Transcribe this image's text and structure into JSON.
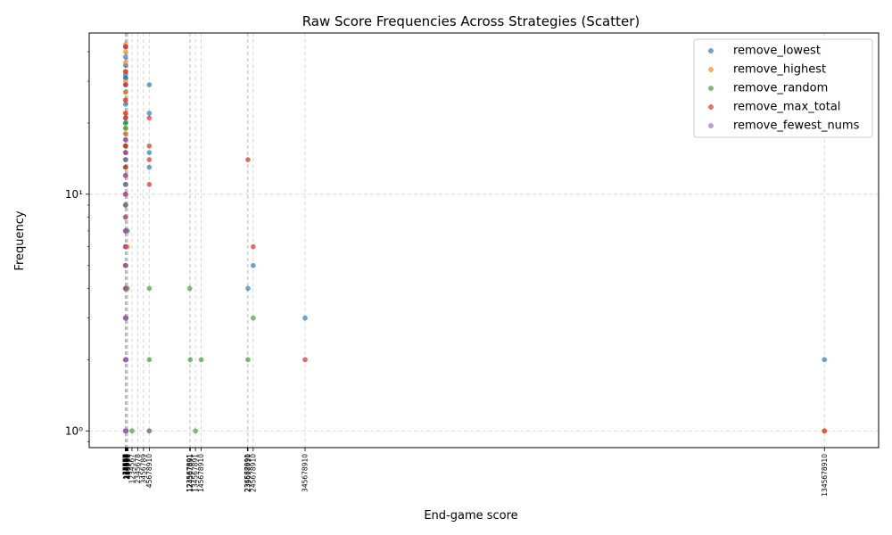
{
  "chart_data": {
    "type": "scatter",
    "title": "Raw Score Frequencies Across Strategies (Scatter)",
    "xlabel": "End-game score",
    "ylabel": "Frequency",
    "yscale": "log",
    "ylim": [
      0.85,
      48
    ],
    "ytick_values": [
      1,
      10
    ],
    "ytick_labels": [
      "10⁰",
      "10¹"
    ],
    "grid": true,
    "legend_position": "top-right",
    "xticks": [
      {
        "value": 0,
        "label": "1"
      },
      {
        "value": 12,
        "label": "2"
      },
      {
        "value": 23,
        "label": "3"
      },
      {
        "value": 34,
        "label": "4"
      },
      {
        "value": 45,
        "label": "5"
      },
      {
        "value": 56,
        "label": "6"
      },
      {
        "value": 67,
        "label": "7"
      },
      {
        "value": 78,
        "label": "8"
      },
      {
        "value": 89,
        "label": "9"
      },
      {
        "value": 100,
        "label": "10"
      },
      {
        "value": 123,
        "label": "12"
      },
      {
        "value": 234,
        "label": "23"
      },
      {
        "value": 345,
        "label": "34"
      },
      {
        "value": 456,
        "label": "45"
      },
      {
        "value": 567,
        "label": "56"
      },
      {
        "value": 678,
        "label": "67"
      },
      {
        "value": 789,
        "label": "78"
      },
      {
        "value": 1234,
        "label": "123"
      },
      {
        "value": 2345,
        "label": "234"
      },
      {
        "value": 3456,
        "label": "345"
      },
      {
        "value": 4567,
        "label": "456"
      },
      {
        "value": 5678,
        "label": "567"
      },
      {
        "value": 6789,
        "label": "678"
      },
      {
        "value": 12345,
        "label": "1234"
      },
      {
        "value": 23456,
        "label": "2345"
      },
      {
        "value": 34567,
        "label": "3456"
      },
      {
        "value": 45678,
        "label": "4567"
      },
      {
        "value": 123456,
        "label": "12345"
      },
      {
        "value": 234567,
        "label": "23456"
      },
      {
        "value": 345678,
        "label": "34567"
      },
      {
        "value": 456789,
        "label": "45678"
      },
      {
        "value": 1234567,
        "label": "123456"
      },
      {
        "value": 2345678,
        "label": "234567"
      },
      {
        "value": 3456789,
        "label": "345678"
      },
      {
        "value": 4567891,
        "label": "456789"
      },
      {
        "value": 12345678,
        "label": "1234567"
      },
      {
        "value": 23456789,
        "label": "2345678"
      },
      {
        "value": 34567891,
        "label": "3456789"
      },
      {
        "value": 45678910,
        "label": "45678910"
      },
      {
        "value": 123567891,
        "label": "123567891"
      },
      {
        "value": 124567891,
        "label": "124567891"
      },
      {
        "value": 134567891,
        "label": "134567891"
      },
      {
        "value": 145678910,
        "label": "145678910"
      },
      {
        "value": 234567891,
        "label": "234567891"
      },
      {
        "value": 235678910,
        "label": "235678910"
      },
      {
        "value": 245678910,
        "label": "245678910"
      },
      {
        "value": 345678910,
        "label": "345678910"
      },
      {
        "value": 1345678910,
        "label": "1345678910"
      }
    ],
    "series": [
      {
        "name": "remove_lowest",
        "color": "#1f77b4",
        "points": [
          [
            1,
            1
          ],
          [
            2,
            2
          ],
          [
            3,
            3
          ],
          [
            4,
            4
          ],
          [
            5,
            6
          ],
          [
            6,
            9
          ],
          [
            7,
            12
          ],
          [
            8,
            15
          ],
          [
            9,
            18
          ],
          [
            10,
            21
          ],
          [
            12,
            24
          ],
          [
            23,
            27
          ],
          [
            34,
            31
          ],
          [
            45,
            35
          ],
          [
            56,
            38
          ],
          [
            67,
            42
          ],
          [
            78,
            31
          ],
          [
            89,
            32
          ],
          [
            100,
            29
          ],
          [
            123,
            20
          ],
          [
            234,
            16
          ],
          [
            345,
            14
          ],
          [
            456,
            11
          ],
          [
            567,
            9
          ],
          [
            678,
            7
          ],
          [
            789,
            5
          ],
          [
            1234,
            3
          ],
          [
            12345,
            2
          ],
          [
            123456,
            1
          ],
          [
            1234567,
            2
          ],
          [
            3456789,
            7
          ],
          [
            45678910,
            29
          ],
          [
            45678910,
            22
          ],
          [
            45678910,
            15
          ],
          [
            45678910,
            13
          ],
          [
            235678910,
            4
          ],
          [
            245678910,
            5
          ],
          [
            345678910,
            3
          ],
          [
            1345678910,
            2
          ]
        ]
      },
      {
        "name": "remove_highest",
        "color": "#ff7f0e",
        "points": [
          [
            1,
            1
          ],
          [
            2,
            2
          ],
          [
            3,
            4
          ],
          [
            4,
            6
          ],
          [
            5,
            8
          ],
          [
            6,
            10
          ],
          [
            7,
            13
          ],
          [
            8,
            16
          ],
          [
            9,
            19
          ],
          [
            10,
            22
          ],
          [
            12,
            25
          ],
          [
            23,
            27
          ],
          [
            34,
            30
          ],
          [
            45,
            33
          ],
          [
            56,
            36
          ],
          [
            67,
            40
          ],
          [
            78,
            43
          ],
          [
            123,
            18
          ],
          [
            234,
            12
          ],
          [
            345,
            9
          ],
          [
            456,
            6
          ],
          [
            567,
            4
          ],
          [
            678,
            3
          ],
          [
            789,
            2
          ],
          [
            1234,
            1
          ],
          [
            3456789,
            6
          ],
          [
            1345678910,
            1
          ]
        ]
      },
      {
        "name": "remove_random",
        "color": "#2ca02c",
        "points": [
          [
            1,
            1
          ],
          [
            2,
            2
          ],
          [
            3,
            3
          ],
          [
            4,
            5
          ],
          [
            5,
            7
          ],
          [
            6,
            9
          ],
          [
            7,
            11
          ],
          [
            8,
            14
          ],
          [
            9,
            17
          ],
          [
            10,
            20
          ],
          [
            12,
            19
          ],
          [
            23,
            16
          ],
          [
            34,
            13
          ],
          [
            45,
            11
          ],
          [
            56,
            9
          ],
          [
            67,
            7
          ],
          [
            78,
            5
          ],
          [
            123,
            4
          ],
          [
            234,
            3
          ],
          [
            345,
            2
          ],
          [
            1234,
            5
          ],
          [
            12345,
            3
          ],
          [
            123456,
            4
          ],
          [
            1234567,
            3
          ],
          [
            3456789,
            4
          ],
          [
            12345678,
            1
          ],
          [
            45678910,
            4
          ],
          [
            45678910,
            2
          ],
          [
            45678910,
            1
          ],
          [
            123567891,
            4
          ],
          [
            124567891,
            2
          ],
          [
            134567891,
            1
          ],
          [
            145678910,
            2
          ],
          [
            235678910,
            2
          ],
          [
            245678910,
            3
          ]
        ]
      },
      {
        "name": "remove_max_total",
        "color": "#d62728",
        "points": [
          [
            1,
            1
          ],
          [
            2,
            2
          ],
          [
            3,
            3
          ],
          [
            4,
            4
          ],
          [
            5,
            6
          ],
          [
            6,
            8
          ],
          [
            7,
            10
          ],
          [
            8,
            12
          ],
          [
            9,
            15
          ],
          [
            10,
            17
          ],
          [
            12,
            21
          ],
          [
            23,
            25
          ],
          [
            34,
            29
          ],
          [
            45,
            33
          ],
          [
            56,
            42
          ],
          [
            67,
            22
          ],
          [
            78,
            16
          ],
          [
            123,
            13
          ],
          [
            234,
            10
          ],
          [
            345,
            7
          ],
          [
            456,
            5
          ],
          [
            1234,
            15
          ],
          [
            12345,
            6
          ],
          [
            123456,
            3
          ],
          [
            1234567,
            1
          ],
          [
            45678910,
            21
          ],
          [
            45678910,
            16
          ],
          [
            45678910,
            14
          ],
          [
            45678910,
            11
          ],
          [
            235678910,
            14
          ],
          [
            245678910,
            6
          ],
          [
            345678910,
            2
          ],
          [
            1345678910,
            1
          ]
        ]
      },
      {
        "name": "remove_fewest_nums",
        "color": "#9467bd",
        "points": [
          [
            1,
            1
          ],
          [
            2,
            2
          ],
          [
            3,
            3
          ],
          [
            4,
            5
          ],
          [
            5,
            7
          ],
          [
            6,
            8
          ],
          [
            7,
            10
          ],
          [
            8,
            12
          ],
          [
            9,
            14
          ],
          [
            10,
            15
          ],
          [
            12,
            17
          ],
          [
            23,
            11
          ],
          [
            34,
            9
          ],
          [
            45,
            6
          ],
          [
            56,
            4
          ],
          [
            67,
            3
          ],
          [
            78,
            2
          ],
          [
            123,
            1
          ],
          [
            234,
            1
          ],
          [
            1234,
            2
          ],
          [
            123456,
            1
          ],
          [
            45678910,
            1
          ]
        ]
      }
    ]
  }
}
